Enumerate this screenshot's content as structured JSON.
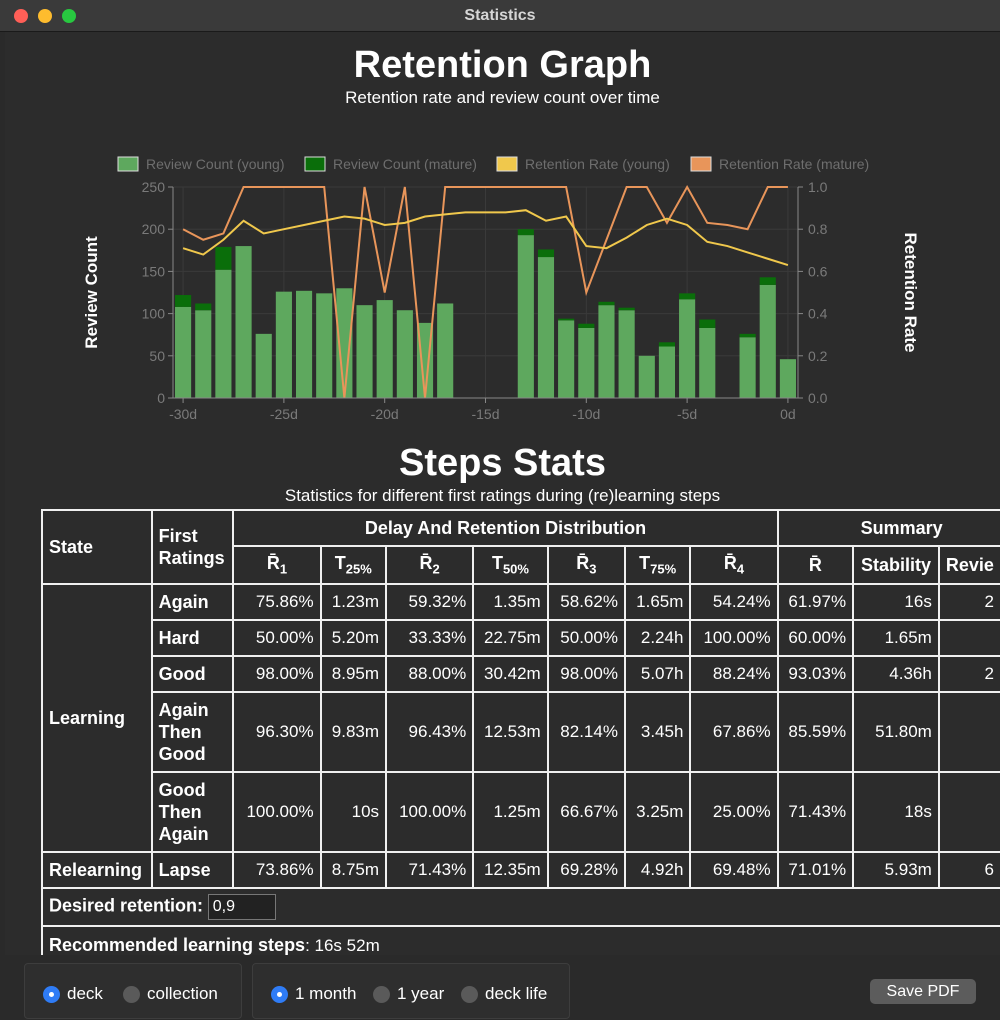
{
  "window": {
    "title": "Statistics"
  },
  "retention_graph": {
    "title": "Retention Graph",
    "subtitle": "Retention rate and review count over time"
  },
  "chart_data": {
    "type": "bar",
    "title": "Retention Graph",
    "subtitle": "Retention rate and review count over time",
    "ylabel": "Review Count",
    "y2label": "Retention Rate",
    "ylim": [
      0,
      250
    ],
    "y2lim": [
      0,
      1.0
    ],
    "yticks": [
      "0",
      "50",
      "100",
      "150",
      "200",
      "250"
    ],
    "y2ticks": [
      "0.0",
      "0.2",
      "0.4",
      "0.6",
      "0.8",
      "1.0"
    ],
    "x": [
      -30,
      -29,
      -28,
      -27,
      -26,
      -25,
      -24,
      -23,
      -22,
      -21,
      -20,
      -19,
      -18,
      -17,
      -16,
      -15,
      -14,
      -13,
      -12,
      -11,
      -10,
      -9,
      -8,
      -7,
      -6,
      -5,
      -4,
      -3,
      -2,
      -1,
      0
    ],
    "xticks": [
      "-30d",
      "-25d",
      "-20d",
      "-15d",
      "-10d",
      "-5d",
      "0d"
    ],
    "series": [
      {
        "name": "Review Count (young)",
        "color": "#5ea85e",
        "values": [
          108,
          104,
          152,
          180,
          76,
          126,
          127,
          124,
          130,
          110,
          116,
          104,
          89,
          112,
          0,
          0,
          0,
          193,
          167,
          92,
          83,
          110,
          104,
          50,
          61,
          117,
          83,
          0,
          72,
          134,
          46
        ]
      },
      {
        "name": "Review Count (mature)",
        "color": "#0a6e0a",
        "values": [
          14,
          8,
          27,
          0,
          0,
          0,
          0,
          0,
          0,
          0,
          0,
          0,
          0,
          0,
          0,
          0,
          0,
          7,
          9,
          2,
          5,
          4,
          3,
          0,
          5,
          7,
          10,
          0,
          4,
          9,
          0
        ]
      },
      {
        "name": "Retention Rate (young)",
        "color": "#f0c84c",
        "values": [
          0.71,
          0.68,
          0.75,
          0.84,
          0.78,
          0.8,
          0.82,
          0.84,
          0.86,
          0.85,
          0.82,
          0.83,
          0.86,
          0.87,
          0.88,
          0.88,
          0.88,
          0.89,
          0.84,
          0.86,
          0.72,
          0.71,
          0.76,
          0.82,
          0.85,
          0.82,
          0.74,
          0.72,
          0.69,
          0.66,
          0.63
        ]
      },
      {
        "name": "Retention Rate (mature)",
        "color": "#e8955a",
        "values": [
          0.8,
          0.75,
          0.78,
          1.0,
          1.0,
          1.0,
          1.0,
          1.0,
          0.0,
          1.0,
          0.5,
          1.0,
          0.0,
          1.0,
          1.0,
          1.0,
          1.0,
          1.0,
          1.0,
          1.0,
          0.5,
          0.75,
          1.0,
          1.0,
          0.83,
          1.0,
          0.83,
          0.82,
          0.8,
          1.0,
          1.0
        ]
      }
    ],
    "legend_position": "top"
  },
  "steps_stats": {
    "title": "Steps Stats",
    "subtitle": "Statistics for different first ratings during (re)learning steps",
    "headers": {
      "state": "State",
      "first_ratings": "First Ratings",
      "delay_group": "Delay And Retention Distribution",
      "summary_group": "Summary",
      "r1": "R̄",
      "r1_sub": "1",
      "t25": "T",
      "t25_sub": "25%",
      "r2": "R̄",
      "r2_sub": "2",
      "t50": "T",
      "t50_sub": "50%",
      "r3": "R̄",
      "r3_sub": "3",
      "t75": "T",
      "t75_sub": "75%",
      "r4": "R̄",
      "r4_sub": "4",
      "rbar": "R̄",
      "stability": "Stability",
      "reviews": "Revie"
    },
    "learning_label": "Learning",
    "relearning_label": "Relearning",
    "rows": [
      {
        "rating_lines": [
          "Again"
        ],
        "cells": [
          "75.86%",
          "1.23m",
          "59.32%",
          "1.35m",
          "58.62%",
          "1.65m",
          "54.24%",
          "61.97%",
          "16s",
          "2"
        ]
      },
      {
        "rating_lines": [
          "Hard"
        ],
        "cells": [
          "50.00%",
          "5.20m",
          "33.33%",
          "22.75m",
          "50.00%",
          "2.24h",
          "100.00%",
          "60.00%",
          "1.65m",
          ""
        ]
      },
      {
        "rating_lines": [
          "Good"
        ],
        "cells": [
          "98.00%",
          "8.95m",
          "88.00%",
          "30.42m",
          "98.00%",
          "5.07h",
          "88.24%",
          "93.03%",
          "4.36h",
          "2"
        ]
      },
      {
        "rating_lines": [
          "Again",
          "Then",
          "Good"
        ],
        "cells": [
          "96.30%",
          "9.83m",
          "96.43%",
          "12.53m",
          "82.14%",
          "3.45h",
          "67.86%",
          "85.59%",
          "51.80m",
          ""
        ]
      },
      {
        "rating_lines": [
          "Good",
          "Then",
          "Again"
        ],
        "cells": [
          "100.00%",
          "10s",
          "100.00%",
          "1.25m",
          "66.67%",
          "3.25m",
          "25.00%",
          "71.43%",
          "18s",
          ""
        ]
      }
    ],
    "relearning_row": {
      "rating": "Lapse",
      "cells": [
        "73.86%",
        "8.75m",
        "71.43%",
        "12.35m",
        "69.28%",
        "4.92h",
        "69.48%",
        "71.01%",
        "5.93m",
        "6"
      ]
    },
    "desired_retention_label": "Desired retention:",
    "desired_retention_value": "0,9",
    "recommended_label": "Recommended learning steps",
    "recommended_value": ": 16s 52m"
  },
  "bottom": {
    "scope_options": [
      "deck",
      "collection"
    ],
    "scope_selected": "deck",
    "range_options": [
      "1 month",
      "1 year",
      "deck life"
    ],
    "range_selected": "1 month",
    "save_label": "Save PDF"
  }
}
